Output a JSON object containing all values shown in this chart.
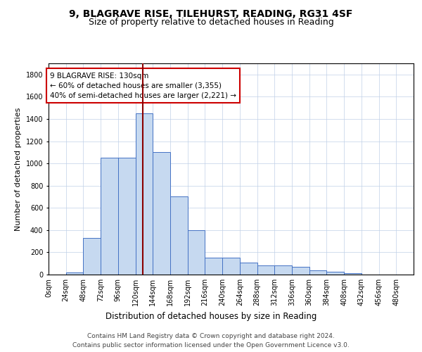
{
  "title1": "9, BLAGRAVE RISE, TILEHURST, READING, RG31 4SF",
  "title2": "Size of property relative to detached houses in Reading",
  "xlabel": "Distribution of detached houses by size in Reading",
  "ylabel": "Number of detached properties",
  "bar_values": [
    0,
    20,
    330,
    1050,
    1050,
    1450,
    1100,
    700,
    400,
    150,
    150,
    110,
    80,
    80,
    70,
    40,
    25,
    15,
    0,
    0,
    0
  ],
  "bin_edges": [
    0,
    24,
    48,
    72,
    96,
    120,
    144,
    168,
    192,
    216,
    240,
    264,
    288,
    312,
    336,
    360,
    384,
    408,
    432,
    456,
    480,
    504
  ],
  "bar_color": "#c6d9f0",
  "bar_edge_color": "#4472c4",
  "vline_x": 130,
  "vline_color": "#8b0000",
  "annotation_line1": "9 BLAGRAVE RISE: 130sqm",
  "annotation_line2": "← 60% of detached houses are smaller (3,355)",
  "annotation_line3": "40% of semi-detached houses are larger (2,221) →",
  "annotation_box_color": "#ffffff",
  "annotation_box_edge": "#cc0000",
  "ylim": [
    0,
    1900
  ],
  "yticks": [
    0,
    200,
    400,
    600,
    800,
    1000,
    1200,
    1400,
    1600,
    1800
  ],
  "grid_color": "#c0d0e8",
  "footer_text1": "Contains HM Land Registry data © Crown copyright and database right 2024.",
  "footer_text2": "Contains public sector information licensed under the Open Government Licence v3.0.",
  "title1_fontsize": 10,
  "title2_fontsize": 9,
  "xlabel_fontsize": 8.5,
  "ylabel_fontsize": 8,
  "tick_fontsize": 7,
  "annotation_fontsize": 7.5,
  "footer_fontsize": 6.5
}
